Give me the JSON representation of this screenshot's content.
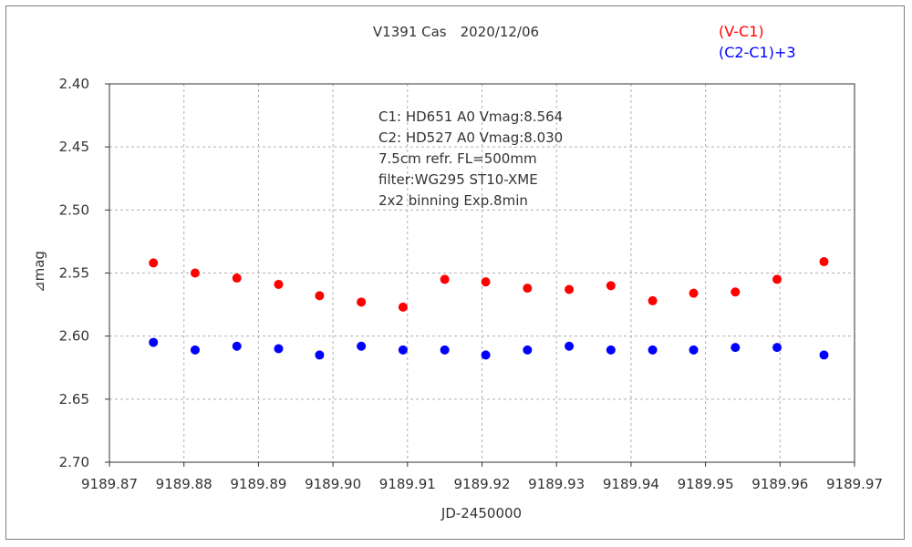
{
  "chart_data": {
    "type": "scatter",
    "title": "V1391 Cas　2020/12/06",
    "xlabel": "JD-2450000",
    "ylabel": "⊿mag",
    "xlim": [
      9189.87,
      9189.97
    ],
    "ylim": [
      2.4,
      2.7
    ],
    "y_inverted": true,
    "grid": true,
    "legend_position": "top-right",
    "x_ticks": [
      "9189.87",
      "9189.88",
      "9189.89",
      "9189.90",
      "9189.91",
      "9189.92",
      "9189.93",
      "9189.94",
      "9189.95",
      "9189.96",
      "9189.97"
    ],
    "x_tick_values": [
      9189.87,
      9189.88,
      9189.89,
      9189.9,
      9189.91,
      9189.92,
      9189.93,
      9189.94,
      9189.95,
      9189.96,
      9189.97
    ],
    "y_ticks": [
      "2.40",
      "2.45",
      "2.50",
      "2.55",
      "2.60",
      "2.65",
      "2.70"
    ],
    "y_tick_values": [
      2.4,
      2.45,
      2.5,
      2.55,
      2.6,
      2.65,
      2.7
    ],
    "annotations": [
      "C1: HD651 A0 Vmag:8.564",
      "C2: HD527 A0  Vmag:8.030",
      "7.5cm refr. FL=500mm",
      "filter:WG295  ST10-XME",
      "2x2 binning  Exp.8min"
    ],
    "series": [
      {
        "name": "(V-C1)",
        "color": "#ff0000",
        "x": [
          9189.8759,
          9189.8815,
          9189.8871,
          9189.8927,
          9189.8982,
          9189.9038,
          9189.9094,
          9189.915,
          9189.9205,
          9189.9261,
          9189.9317,
          9189.9373,
          9189.9429,
          9189.9484,
          9189.954,
          9189.9596,
          9189.9659
        ],
        "y": [
          2.542,
          2.55,
          2.554,
          2.559,
          2.568,
          2.573,
          2.577,
          2.555,
          2.557,
          2.562,
          2.563,
          2.56,
          2.572,
          2.566,
          2.565,
          2.555,
          2.541
        ]
      },
      {
        "name": "(C2-C1)+3",
        "color": "#0000ff",
        "x": [
          9189.8759,
          9189.8815,
          9189.8871,
          9189.8927,
          9189.8982,
          9189.9038,
          9189.9094,
          9189.915,
          9189.9205,
          9189.9261,
          9189.9317,
          9189.9373,
          9189.9429,
          9189.9484,
          9189.954,
          9189.9596,
          9189.9659
        ],
        "y": [
          2.605,
          2.611,
          2.608,
          2.61,
          2.615,
          2.608,
          2.611,
          2.611,
          2.615,
          2.611,
          2.608,
          2.611,
          2.611,
          2.611,
          2.609,
          2.609,
          2.615
        ]
      }
    ]
  }
}
